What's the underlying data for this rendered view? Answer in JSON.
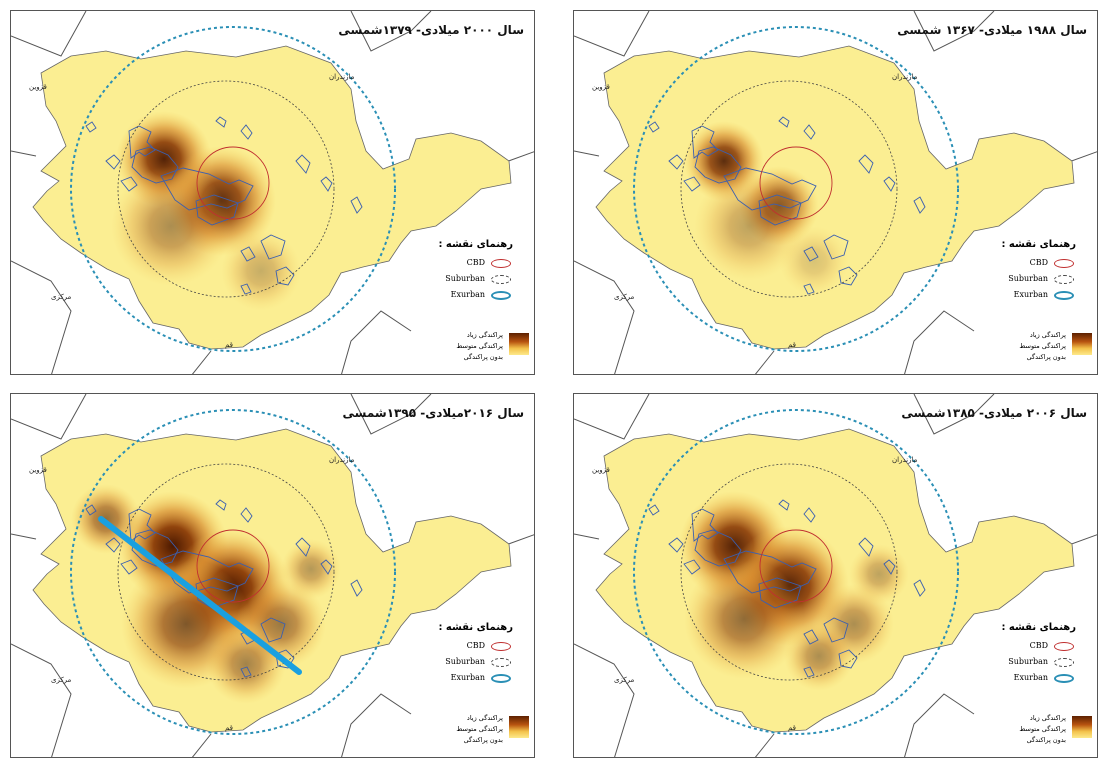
{
  "panels": [
    {
      "title": "سال ۲۰۰۰ میلادی- ۱۳۷۹شمسی",
      "regions": {
        "qazvin": "قزوین",
        "mazandaran": "مازندران",
        "markazi": "مرکزی",
        "qom": "قم"
      },
      "legend": {
        "title": "رهنمای نقشه :",
        "cbd": "CBD",
        "suburban": "Suburban",
        "exurban": "Exurban",
        "high": "پراکندگی زیاد",
        "medium": "پراکندگی متوسط",
        "none": "بدون پراکندگی"
      },
      "has_line": false
    },
    {
      "title": "سال ۱۹۸۸ میلادی- ۱۳۶۷ شمسی",
      "regions": {
        "qazvin": "قزوین",
        "mazandaran": "مازندران",
        "markazi": "مرکزی",
        "qom": "قم"
      },
      "legend": {
        "title": "رهنمای نقشه :",
        "cbd": "CBD",
        "suburban": "Suburban",
        "exurban": "Exurban",
        "high": "پراکندگی زیاد",
        "medium": "پراکندگی متوسط",
        "none": "بدون پراکندگی"
      },
      "has_line": false
    },
    {
      "title": "سال ۲۰۱۶میلادی- ۱۳۹۵شمسی",
      "regions": {
        "qazvin": "قزوین",
        "mazandaran": "مازندران",
        "markazi": "مرکزی",
        "qom": "قم"
      },
      "legend": {
        "title": "رهنمای نقشه :",
        "cbd": "CBD",
        "suburban": "Suburban",
        "exurban": "Exurban",
        "high": "پراکندگی زیاد",
        "medium": "پراکندگی متوسط",
        "none": "بدون پراکندگی"
      },
      "has_line": true
    },
    {
      "title": "سال ۲۰۰۶ میلادی- ۱۳۸۵شمسی",
      "regions": {
        "qazvin": "قزوین",
        "mazandaran": "مازندران",
        "markazi": "مرکزی",
        "qom": "قم"
      },
      "legend": {
        "title": "رهنمای نقشه :",
        "cbd": "CBD",
        "suburban": "Suburban",
        "exurban": "Exurban",
        "high": "پراکندگی زیاد",
        "medium": "پراکندگی متوسط",
        "none": "بدون پراکندگی"
      },
      "has_line": false
    }
  ],
  "colors": {
    "province_fill": "#fbee92",
    "dense": "#5c2000",
    "medium": "#c8701a",
    "cbd_ring": "#c03030",
    "suburban_ring": "#444444",
    "exurban_ring": "#2a8fb5",
    "transect_line": "#1aa0e0",
    "urban_outline": "#3a5fb0"
  }
}
